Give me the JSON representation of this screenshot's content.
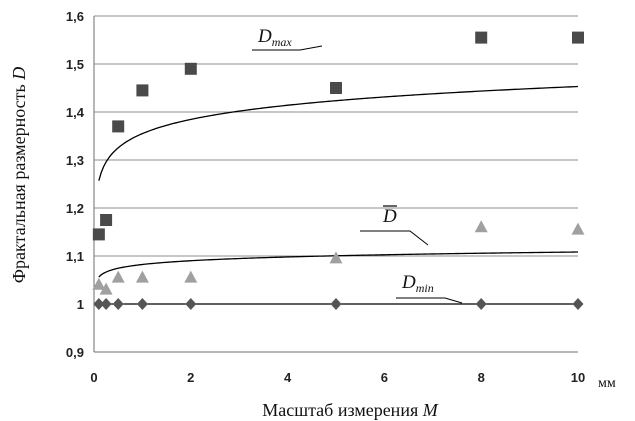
{
  "chart_data": {
    "type": "scatter",
    "xlabel": "Масштаб измерения",
    "xlabel_var": "M",
    "ylabel": "Фрактальная размерность",
    "ylabel_var": "D",
    "x_unit": "мм",
    "xlim": [
      0,
      10
    ],
    "ylim": [
      0.9,
      1.6
    ],
    "x_ticks": [
      "0",
      "2",
      "4",
      "6",
      "8",
      "10"
    ],
    "y_ticks": [
      "0,9",
      "1",
      "1,1",
      "1,2",
      "1,3",
      "1,4",
      "1,5",
      "1,6"
    ],
    "grid": "horizontal",
    "series": [
      {
        "name": "D_max",
        "label_main": "D",
        "label_sub": "max",
        "marker": "square",
        "color": "#4a4a4a",
        "points": [
          {
            "x": 0.1,
            "y": 1.145
          },
          {
            "x": 0.25,
            "y": 1.175
          },
          {
            "x": 0.5,
            "y": 1.37
          },
          {
            "x": 1,
            "y": 1.445
          },
          {
            "x": 2,
            "y": 1.49
          },
          {
            "x": 5,
            "y": 1.45
          },
          {
            "x": 8,
            "y": 1.555
          },
          {
            "x": 10,
            "y": 1.555
          }
        ],
        "trend": {
          "type": "log",
          "a": 1.355,
          "b": 0.0426
        }
      },
      {
        "name": "D_mean",
        "label_main": "D",
        "label_sub": "",
        "overline": true,
        "marker": "triangle",
        "color": "#a0a0a0",
        "points": [
          {
            "x": 0.1,
            "y": 1.04
          },
          {
            "x": 0.25,
            "y": 1.03
          },
          {
            "x": 0.5,
            "y": 1.055
          },
          {
            "x": 1,
            "y": 1.055
          },
          {
            "x": 2,
            "y": 1.055
          },
          {
            "x": 5,
            "y": 1.095
          },
          {
            "x": 8,
            "y": 1.16
          },
          {
            "x": 10,
            "y": 1.155
          }
        ],
        "trend": {
          "type": "log",
          "a": 1.0823,
          "b": 0.0113
        }
      },
      {
        "name": "D_min",
        "label_main": "D",
        "label_sub": "min",
        "marker": "diamond",
        "color": "#555555",
        "points": [
          {
            "x": 0.1,
            "y": 1.0
          },
          {
            "x": 0.25,
            "y": 1.0
          },
          {
            "x": 0.5,
            "y": 1.0
          },
          {
            "x": 1,
            "y": 1.0
          },
          {
            "x": 2,
            "y": 1.0
          },
          {
            "x": 5,
            "y": 1.0
          },
          {
            "x": 8,
            "y": 1.0
          },
          {
            "x": 10,
            "y": 1.0
          }
        ],
        "trend": {
          "type": "constant",
          "value": 1.0
        }
      }
    ]
  }
}
